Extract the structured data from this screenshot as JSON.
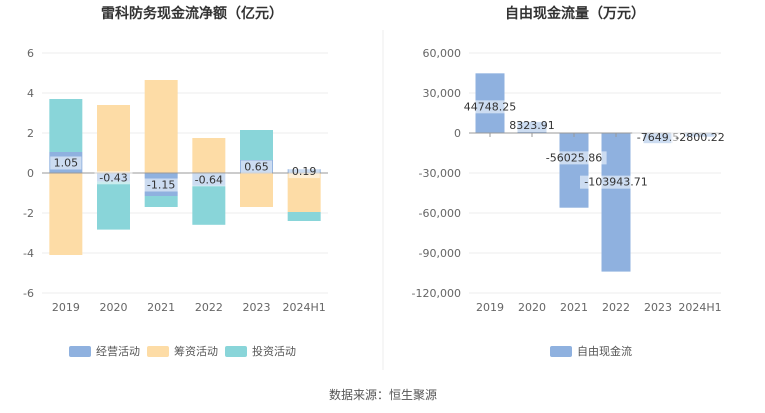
{
  "chart_data": [
    {
      "type": "bar",
      "stacked": true,
      "title": "雷科防务现金流净额（亿元）",
      "categories": [
        "2019",
        "2020",
        "2021",
        "2022",
        "2023",
        "2024H1"
      ],
      "ylim": [
        -6,
        6
      ],
      "yticks": [
        "6",
        "4",
        "2",
        "0",
        "-2",
        "-4",
        "-6"
      ],
      "series": [
        {
          "name": "经营活动",
          "color": "#8fb1df",
          "values": [
            1.05,
            -0.43,
            -1.15,
            -0.64,
            0.65,
            0.19
          ],
          "labels": [
            "1.05",
            "-0.43",
            "-1.15",
            "-0.64",
            "0.65",
            "0.19"
          ]
        },
        {
          "name": "筹资活动",
          "color": "#fddca6",
          "values": [
            -4.1,
            3.4,
            4.65,
            1.75,
            -1.7,
            -1.95
          ]
        },
        {
          "name": "投资活动",
          "color": "#89d5d9",
          "values": [
            2.65,
            -2.4,
            -0.55,
            -1.95,
            1.5,
            -0.45
          ]
        }
      ],
      "legend_position": "bottom"
    },
    {
      "type": "bar",
      "title": "自由现金流量（万元）",
      "categories": [
        "2019",
        "2020",
        "2021",
        "2022",
        "2023",
        "2024H1"
      ],
      "ylim": [
        -120000,
        60000
      ],
      "yticks": [
        "60,000",
        "30,000",
        "0",
        "-30,000",
        "-60,000",
        "-90,000",
        "-120,000"
      ],
      "series": [
        {
          "name": "自由现金流",
          "color": "#8fb1df",
          "values": [
            44748.25,
            8323.91,
            -56025.86,
            -103943.71,
            -7649.5,
            -2800.22
          ],
          "labels": [
            "44748.25",
            "8323.91",
            "-56025.86",
            "-103943.71",
            "-7649.5",
            "-2800.22"
          ]
        }
      ],
      "legend_position": "bottom"
    }
  ],
  "source": "数据来源：恒生聚源"
}
